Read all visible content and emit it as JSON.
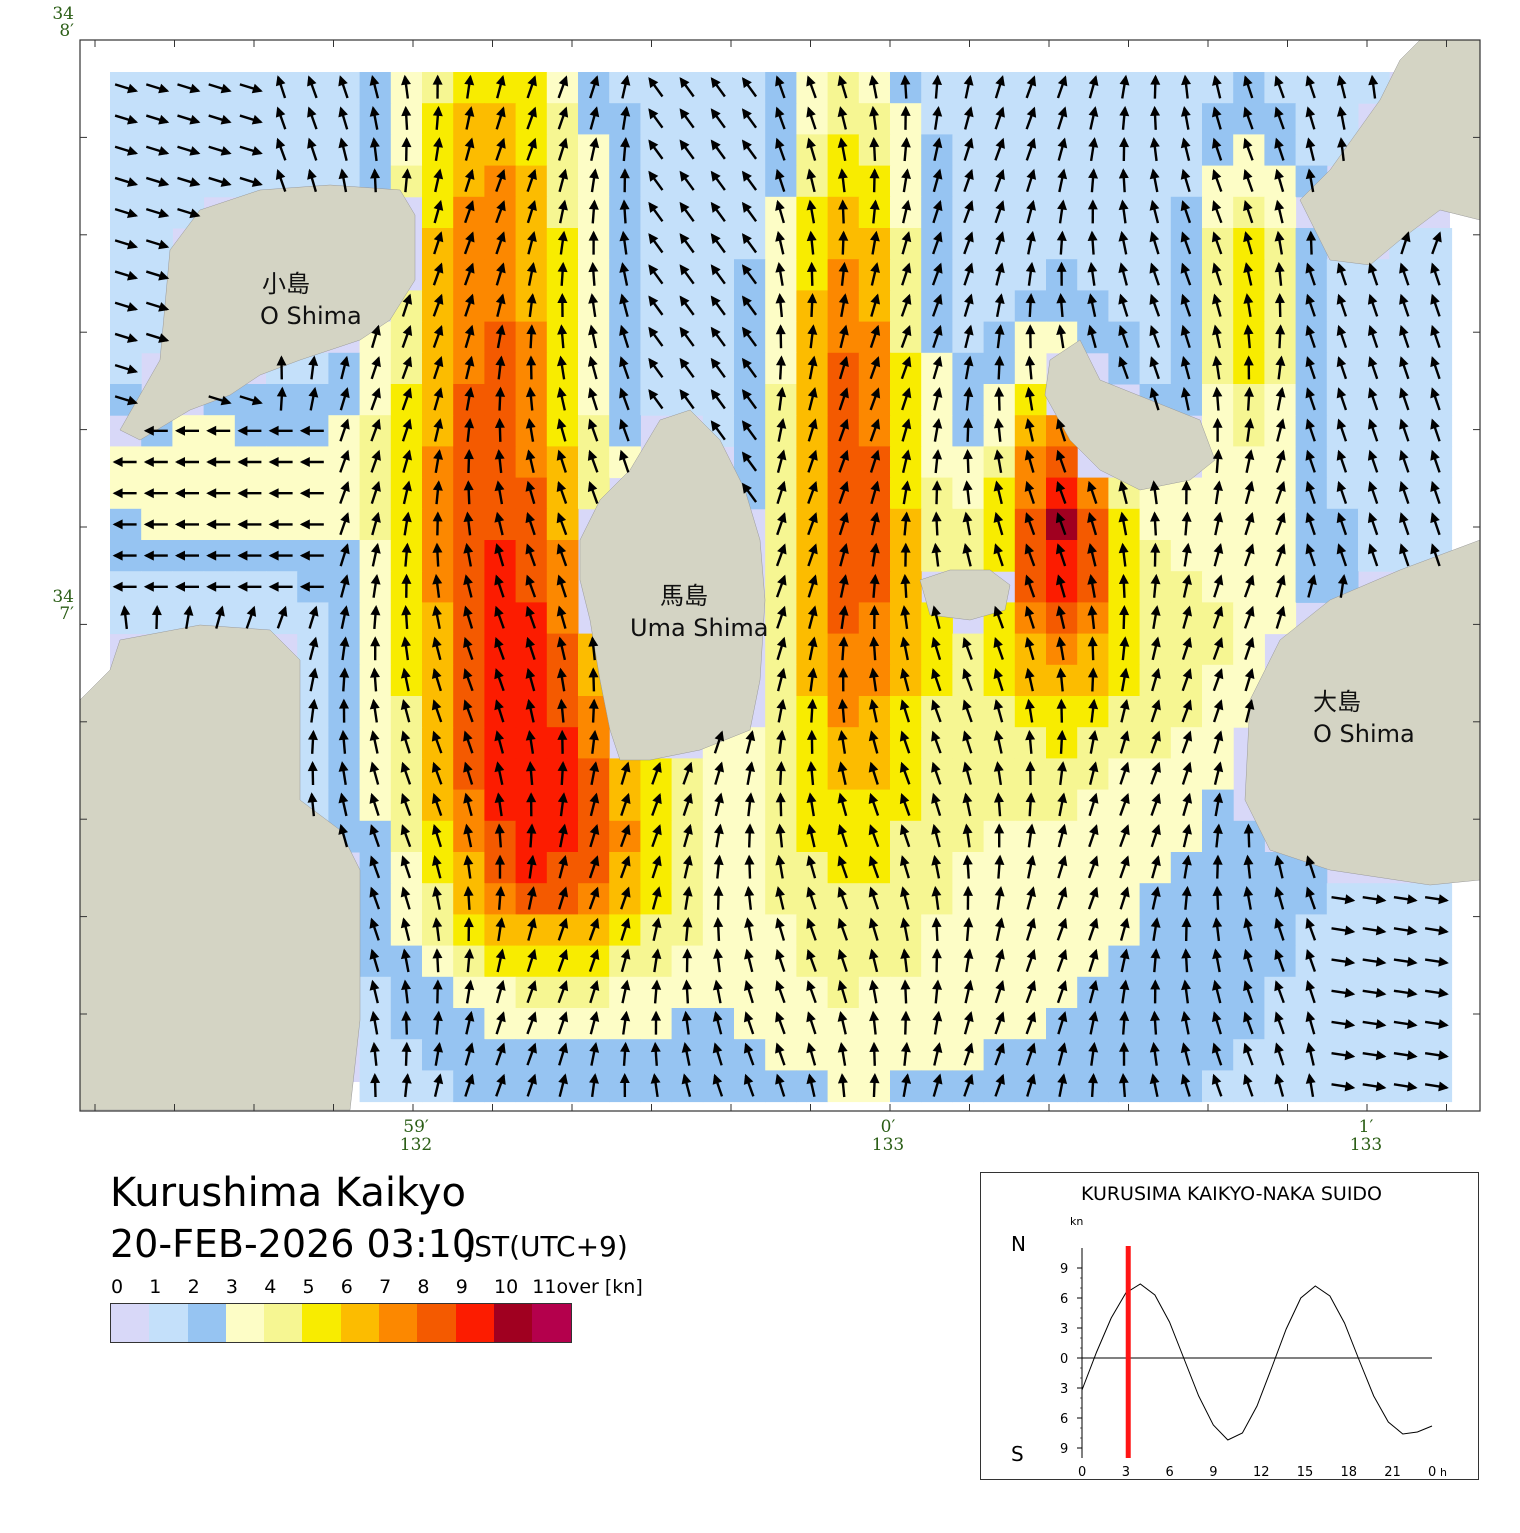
{
  "title": "Kurushima Kaikyo",
  "datetime": "20-FEB-2026 03:10",
  "timezone": "JST(UTC+9)",
  "legend": {
    "labels": [
      "0",
      "1",
      "2",
      "3",
      "4",
      "5",
      "6",
      "7",
      "8",
      "9",
      "10",
      "11over [kn]"
    ],
    "colors": [
      "#d8d8f8",
      "#c4e0fa",
      "#96c4f2",
      "#fdfdc6",
      "#f6f692",
      "#f8ec00",
      "#fcbc00",
      "#fc8800",
      "#f45a00",
      "#fc1c00",
      "#a00020",
      "#b4004c"
    ]
  },
  "axes": {
    "lat_labels": [
      {
        "deg": "34",
        "min": "8′"
      },
      {
        "deg": "34",
        "min": "7′"
      }
    ],
    "lon_labels": [
      {
        "min": "59′",
        "deg": "132"
      },
      {
        "min": "0′",
        "deg": "133"
      },
      {
        "min": "1′",
        "deg": "133"
      }
    ]
  },
  "places": [
    {
      "jp": "小島",
      "en": "O Shima"
    },
    {
      "jp": "馬島",
      "en": "Uma Shima"
    },
    {
      "jp": "大島",
      "en": "O Shima"
    }
  ],
  "colors": {
    "land": "#d4d4c4",
    "sea": "#d8d8f8",
    "tick": "#2b5e16",
    "marker": "#ff1414"
  },
  "chart_data": {
    "type": "line",
    "title": "KURUSIMA KAIKYO-NAKA SUIDO",
    "ylabel": "kn",
    "y_top_label": "N",
    "y_bottom_label": "S",
    "x_ticks": [
      "0",
      "3",
      "6",
      "9",
      "12",
      "15",
      "18",
      "21",
      "0"
    ],
    "x_unit": "h",
    "y_ticks": [
      "9",
      "6",
      "3",
      "0",
      "3",
      "6",
      "9"
    ],
    "ylim": [
      -10,
      10
    ],
    "xlim": [
      0,
      24
    ],
    "current_time_h": 3.17,
    "series": [
      {
        "x": [
          0,
          1,
          2,
          3,
          4,
          5,
          6,
          7,
          8,
          9,
          10,
          11,
          12,
          13,
          14,
          15,
          16,
          17,
          18,
          19,
          20,
          21,
          22,
          23,
          24
        ],
        "y": [
          -3.2,
          0.6,
          4.0,
          6.5,
          7.4,
          6.3,
          3.6,
          -0.1,
          -3.8,
          -6.7,
          -8.2,
          -7.5,
          -4.8,
          -1.0,
          2.9,
          6.0,
          7.2,
          6.2,
          3.5,
          -0.2,
          -3.8,
          -6.4,
          -7.6,
          -7.4,
          -6.8
        ]
      }
    ]
  }
}
